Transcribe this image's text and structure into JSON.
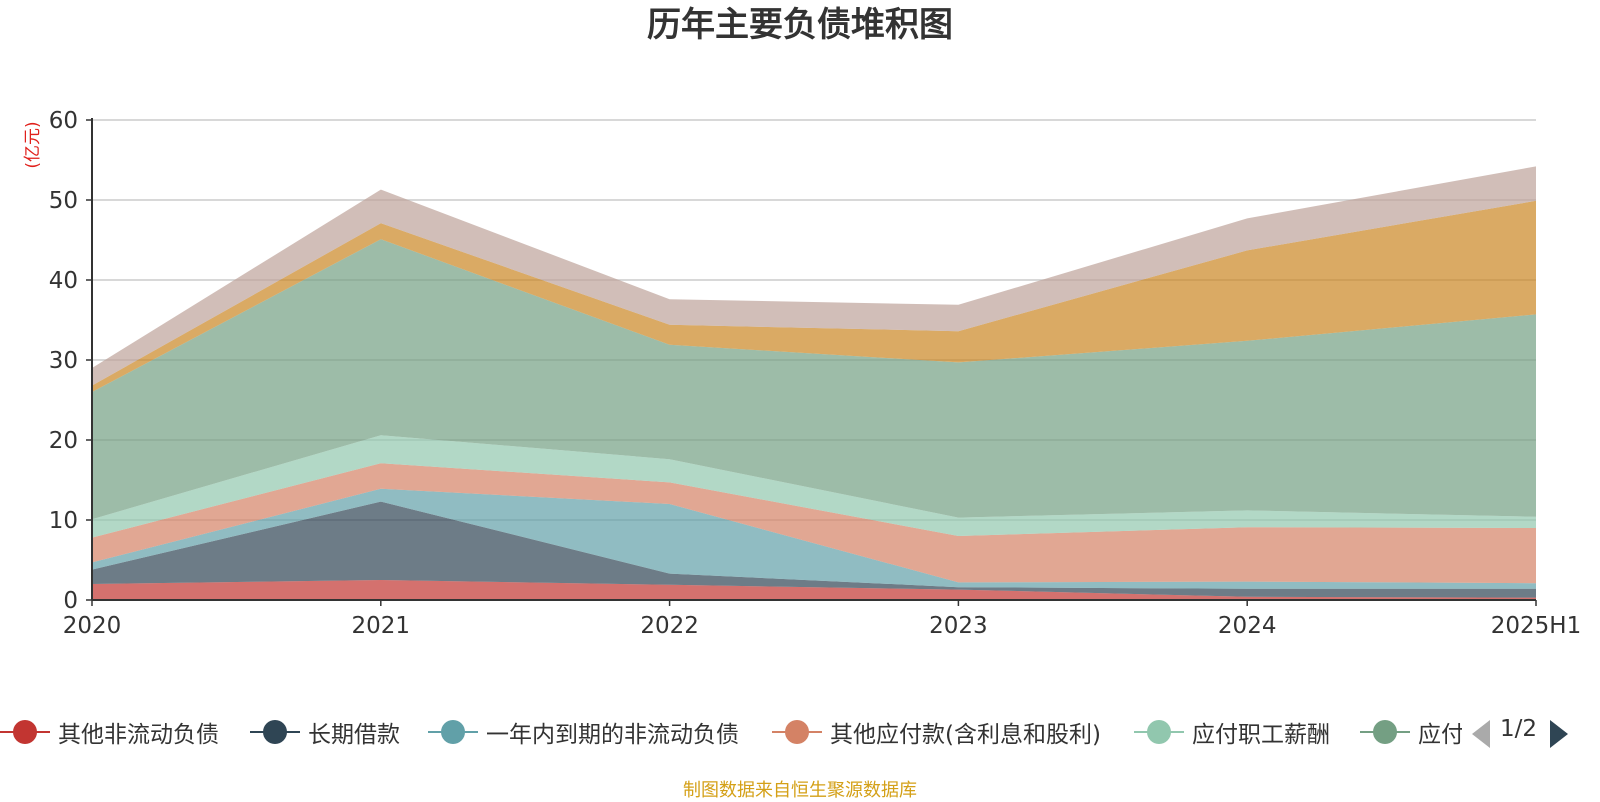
{
  "chart_data": {
    "type": "area",
    "stacked": true,
    "title": "历年主要负债堆积图",
    "unit_label": "(亿元)",
    "categories": [
      "2020",
      "2021",
      "2022",
      "2023",
      "2024",
      "2025H1"
    ],
    "y_ticks": [
      "0",
      "10",
      "20",
      "30",
      "40",
      "50",
      "60"
    ],
    "ylim": [
      0,
      60
    ],
    "grid": true,
    "series": [
      {
        "name": "其他非流动负债",
        "color": "#c23531",
        "values": [
          2.0,
          2.5,
          1.9,
          1.3,
          0.4,
          0.3
        ]
      },
      {
        "name": "长期借款",
        "color": "#2f4554",
        "values": [
          1.8,
          9.8,
          1.4,
          0.3,
          1.0,
          1.1
        ]
      },
      {
        "name": "一年内到期的非流动负债",
        "color": "#61a0a8",
        "values": [
          0.9,
          1.6,
          8.7,
          0.6,
          0.9,
          0.7
        ]
      },
      {
        "name": "其他应付款(含利息和股利)",
        "color": "#d48265",
        "values": [
          3.1,
          3.2,
          2.7,
          5.8,
          6.8,
          6.9
        ]
      },
      {
        "name": "应付职工薪酬",
        "color": "#91c7ae",
        "values": [
          2.3,
          3.5,
          2.9,
          2.3,
          2.1,
          1.4
        ]
      },
      {
        "name": "应付账款",
        "color": "#749f83",
        "values": [
          15.9,
          24.5,
          14.3,
          19.4,
          21.2,
          25.3
        ]
      },
      {
        "name": "",
        "color": "#ca8622",
        "values": [
          0.8,
          2.0,
          2.5,
          3.9,
          11.3,
          14.2
        ]
      },
      {
        "name": "",
        "color": "#bda29a",
        "values": [
          2.2,
          4.2,
          3.2,
          3.3,
          4.0,
          4.3
        ]
      }
    ]
  },
  "legend": {
    "items": [
      {
        "label": "其他非流动负债",
        "color": "#c23531"
      },
      {
        "label": "长期借款",
        "color": "#2f4554"
      },
      {
        "label": "一年内到期的非流动负债",
        "color": "#61a0a8"
      },
      {
        "label": "其他应付款(含利息和股利)",
        "color": "#d48265"
      },
      {
        "label": "应付职工薪酬",
        "color": "#91c7ae"
      },
      {
        "label": "应付账款",
        "color": "#749f83"
      }
    ],
    "page": "1/2"
  },
  "source_note": "制图数据来自恒生聚源数据库"
}
